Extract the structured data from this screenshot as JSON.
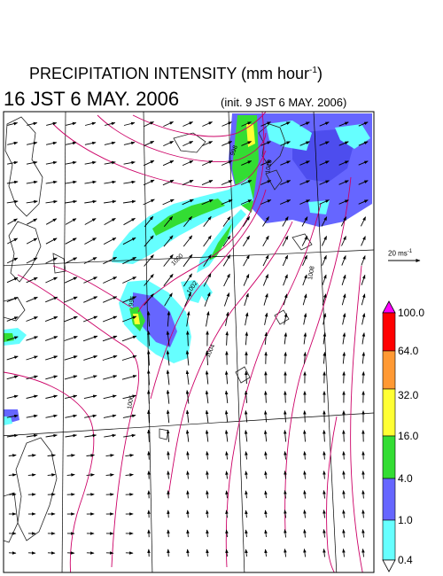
{
  "title": {
    "main": "PRECIPITATION INTENSITY (mm hour",
    "unit_exponent": "-1",
    "unit_close": ")"
  },
  "valid_time": "16 JST 6 MAY. 2006",
  "init_time": "(init. 9 JST 6 MAY. 2006)",
  "wind_reference": {
    "label": "20 ms",
    "exponent": "-1"
  },
  "isobar_labels": [
    "998",
    "1000",
    "1002",
    "1004",
    "996",
    "1006",
    "1008",
    "1010"
  ],
  "legend": {
    "levels": [
      "100.0",
      "64.0",
      "32.0",
      "16.0",
      "4.0",
      "1.0",
      "0.4"
    ],
    "colors": [
      "#ff00ff",
      "#ff0000",
      "#ff9933",
      "#ffff33",
      "#33dd33",
      "#6666ff",
      "#66ffff"
    ]
  }
}
